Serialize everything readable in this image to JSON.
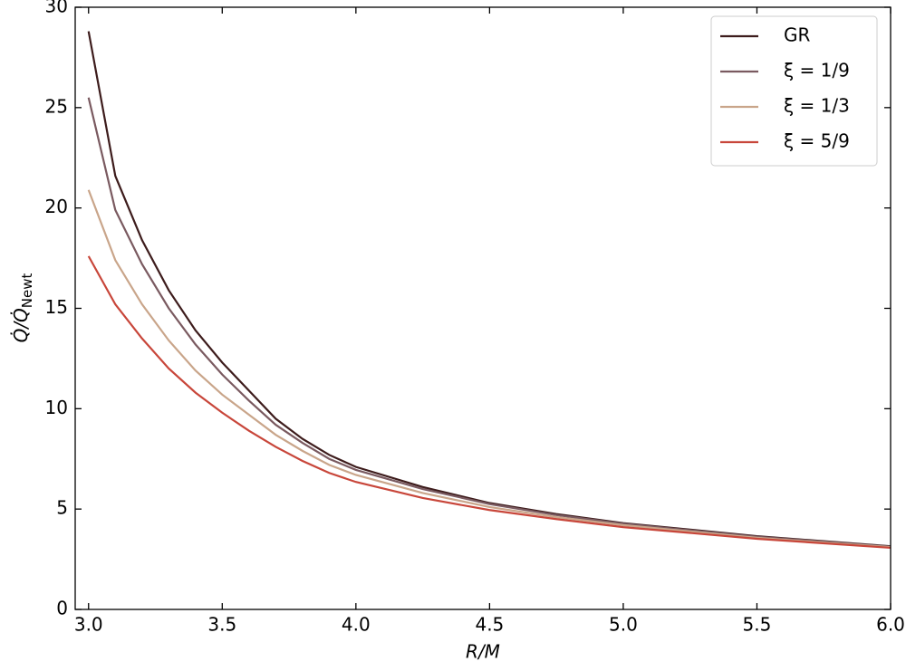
{
  "chart_data": {
    "type": "line",
    "xlabel": "R/M",
    "ylabel": "Q̇/Q̇",
    "ylabel_subscript": "Newt",
    "x": [
      3.0,
      3.1,
      3.2,
      3.3,
      3.4,
      3.5,
      3.6,
      3.7,
      3.8,
      3.9,
      4.0,
      4.25,
      4.5,
      4.75,
      5.0,
      5.5,
      6.0
    ],
    "series": [
      {
        "name": "GR",
        "color": "#3d1c1c",
        "values": [
          28.8,
          21.6,
          18.4,
          15.9,
          13.9,
          12.3,
          10.9,
          9.5,
          8.5,
          7.7,
          7.1,
          6.1,
          5.3,
          4.75,
          4.3,
          3.65,
          3.15
        ]
      },
      {
        "name": "ξ = 1/9",
        "color": "#7a5a60",
        "values": [
          25.5,
          19.9,
          17.2,
          15.0,
          13.2,
          11.7,
          10.4,
          9.2,
          8.3,
          7.5,
          6.95,
          6.0,
          5.25,
          4.7,
          4.27,
          3.62,
          3.13
        ]
      },
      {
        "name": "ξ = 1/3",
        "color": "#c9a58a",
        "values": [
          20.9,
          17.4,
          15.2,
          13.4,
          11.9,
          10.7,
          9.7,
          8.7,
          7.9,
          7.2,
          6.7,
          5.8,
          5.1,
          4.6,
          4.2,
          3.57,
          3.1
        ]
      },
      {
        "name": "ξ = 5/9",
        "color": "#c8463a",
        "values": [
          17.6,
          15.2,
          13.5,
          12.0,
          10.8,
          9.8,
          8.9,
          8.1,
          7.4,
          6.8,
          6.35,
          5.55,
          4.95,
          4.5,
          4.1,
          3.52,
          3.07
        ]
      }
    ],
    "xlim": [
      2.95,
      6.0
    ],
    "xticks": [
      {
        "value": 3,
        "label": "3.0"
      },
      {
        "value": 3.5,
        "label": "3.5"
      },
      {
        "value": 4,
        "label": "4.0"
      },
      {
        "value": 4.5,
        "label": "4.5"
      },
      {
        "value": 5,
        "label": "5.0"
      },
      {
        "value": 5.5,
        "label": "5.5"
      },
      {
        "value": 6,
        "label": "6.0"
      }
    ],
    "ylim": [
      0,
      30
    ],
    "yticks": [
      0,
      5,
      10,
      15,
      20,
      25,
      30
    ],
    "legend": "upper right"
  }
}
